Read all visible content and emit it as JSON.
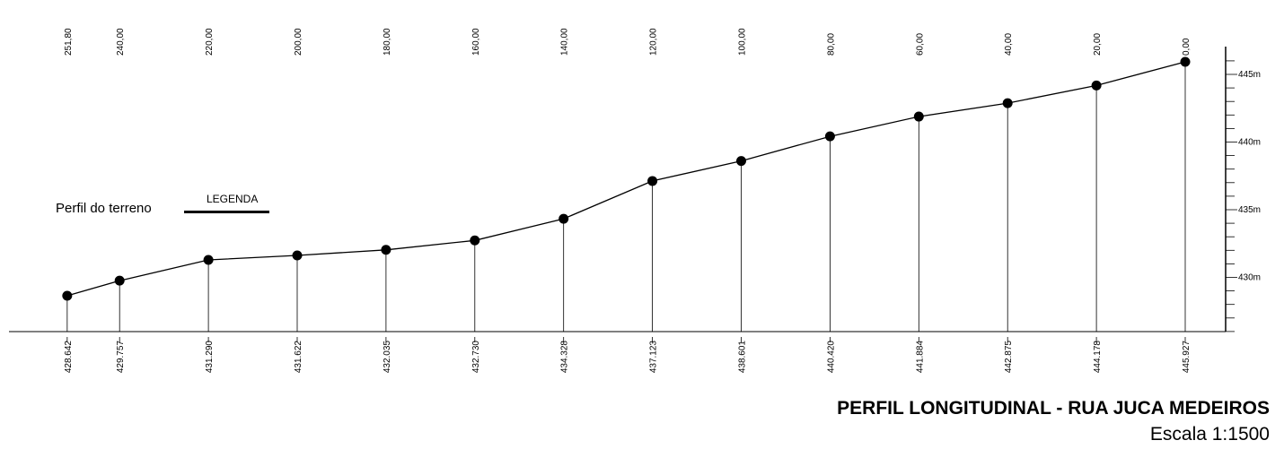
{
  "chart_data": {
    "type": "line",
    "title": "PERFIL LONGITUDINAL - RUA JUCA MEDEIROS",
    "subtitle": "Escala 1:1500",
    "legend": {
      "series_label": "Perfil do terreno",
      "title": "LEGENDA"
    },
    "x": [
      251.8,
      240.0,
      220.0,
      200.0,
      180.0,
      160.0,
      140.0,
      120.0,
      100.0,
      80.0,
      60.0,
      40.0,
      20.0,
      0.0
    ],
    "x_labels": [
      "251,80",
      "240,00",
      "220,00",
      "200,00",
      "180,00",
      "160,00",
      "140,00",
      "120,00",
      "100,00",
      "80,00",
      "60,00",
      "40,00",
      "20,00",
      "0,00"
    ],
    "elevation_labels": [
      "428.642",
      "429.757",
      "431.290",
      "431.622",
      "432.035",
      "432.730",
      "434.328",
      "437.123",
      "438.601",
      "440.420",
      "441.884",
      "442.875",
      "444.178",
      "445.927"
    ],
    "series": [
      {
        "name": "Perfil do terreno",
        "values": [
          428.642,
          429.757,
          431.29,
          431.622,
          432.035,
          432.73,
          434.328,
          437.123,
          438.601,
          440.42,
          441.884,
          442.875,
          444.178,
          445.927
        ]
      }
    ],
    "y_ticks": [
      {
        "value": 430,
        "label": "430m"
      },
      {
        "value": 435,
        "label": "435m"
      },
      {
        "value": 440,
        "label": "440m"
      },
      {
        "value": 445,
        "label": "445m"
      }
    ],
    "ylim": [
      424.2,
      446.8
    ],
    "xlim": [
      255,
      0
    ],
    "grid": false,
    "legend_position": "left"
  }
}
